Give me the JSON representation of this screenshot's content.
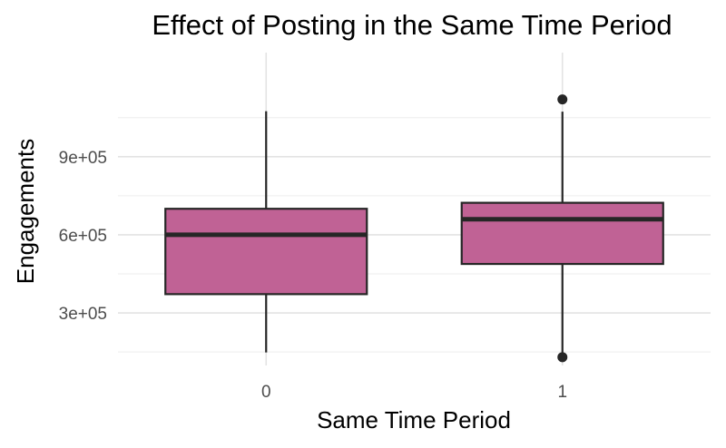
{
  "chart_data": {
    "type": "boxplot",
    "title": "Effect of Posting in the Same Time Period",
    "xlabel": "Same Time Period",
    "ylabel": "Engagements",
    "categories": [
      "0",
      "1"
    ],
    "y_ticks": [
      300000,
      600000,
      900000
    ],
    "y_tick_labels": [
      "3e+05",
      "6e+05",
      "9e+05"
    ],
    "ylim": [
      98000,
      1300000
    ],
    "grid": true,
    "boxes": [
      {
        "category": "0",
        "whisker_low": 148000,
        "q1": 372000,
        "median": 600000,
        "q3": 700000,
        "whisker_high": 1075000,
        "outliers": []
      },
      {
        "category": "1",
        "whisker_low": 148000,
        "q1": 488000,
        "median": 660000,
        "q3": 723000,
        "whisker_high": 1073000,
        "outliers": [
          1120000,
          130000
        ]
      }
    ],
    "colors": {
      "box_fill": "#c06295",
      "box_stroke": "#262626",
      "outlier": "#262626",
      "grid": "#e3e3e3"
    }
  }
}
